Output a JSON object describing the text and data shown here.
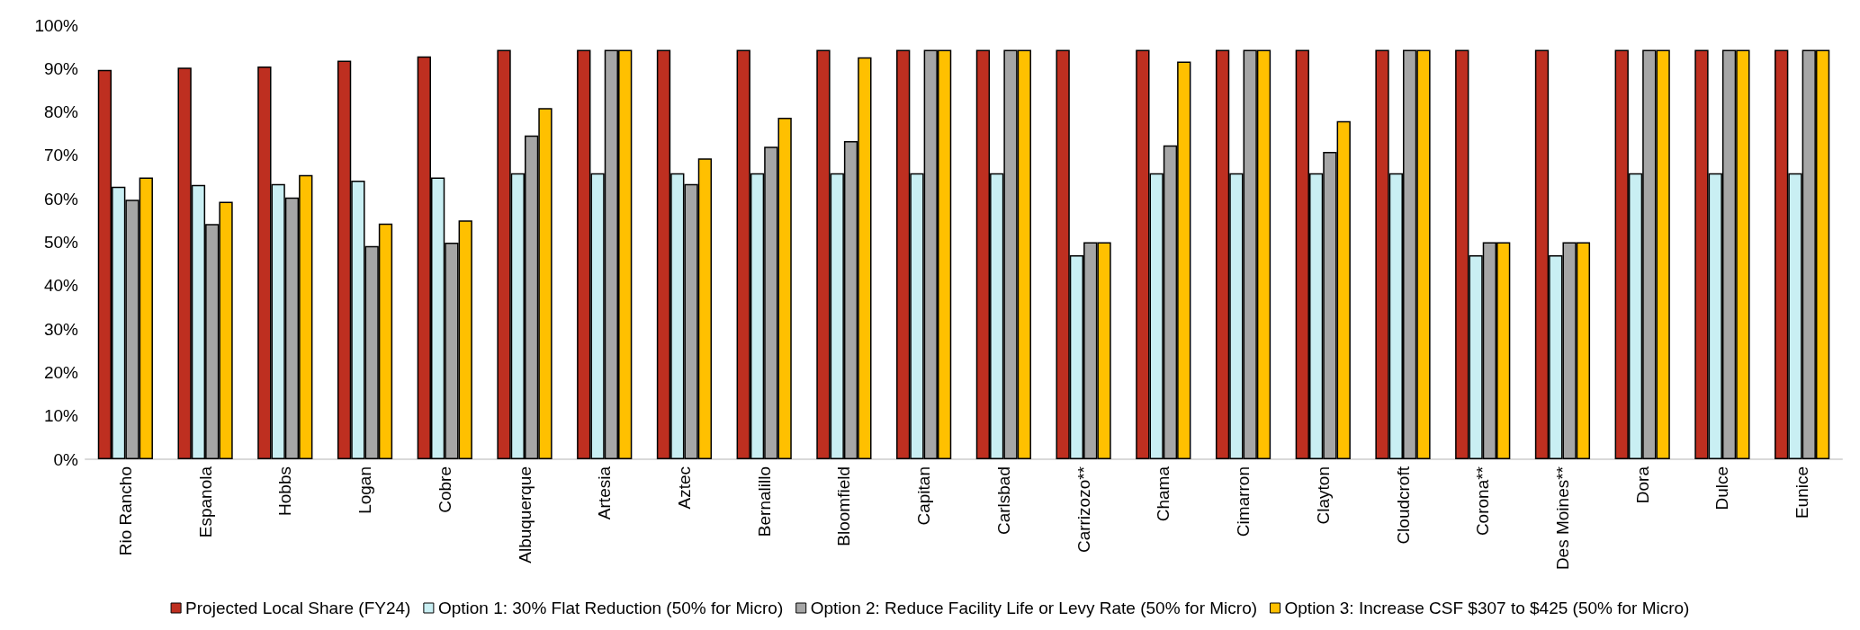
{
  "chart_data": {
    "type": "bar",
    "categories": [
      "Rio Rancho",
      "Espanola",
      "Hobbs",
      "Logan",
      "Cobre",
      "Albuquerque",
      "Artesia",
      "Aztec",
      "Bernalillo",
      "Bloomfield",
      "Capitan",
      "Carlsbad",
      "Carrizozo**",
      "Chama",
      "Cimarron",
      "Clayton",
      "Cloudcroft",
      "Corona**",
      "Des Moines**",
      "Dora",
      "Dulce",
      "Eunice"
    ],
    "series": [
      {
        "name": "Projected Local Share (FY24)",
        "color": "#be2f20",
        "values": [
          89.7,
          90.2,
          90.5,
          91.8,
          92.8,
          94.3,
          94.3,
          94.3,
          94.3,
          94.3,
          94.3,
          94.3,
          94.3,
          94.3,
          94.3,
          94.3,
          94.3,
          94.3,
          94.3,
          94.3,
          94.3,
          94.3
        ]
      },
      {
        "name": "Option 1: 30% Flat Reduction (50% for Micro)",
        "color": "#c9eff3",
        "values": [
          62.8,
          63.2,
          63.4,
          64.2,
          64.9,
          65.9,
          65.9,
          65.9,
          65.9,
          65.9,
          65.9,
          65.9,
          47,
          65.9,
          65.9,
          65.9,
          65.9,
          47,
          47,
          65.9,
          65.9,
          65.9
        ]
      },
      {
        "name": "Option 2: Reduce Facility Life or Levy Rate (50% for Micro)",
        "color": "#a6a6a6",
        "values": [
          59.8,
          54.2,
          60.3,
          49.1,
          49.9,
          74.6,
          94.3,
          63.4,
          72,
          73.3,
          94.3,
          94.3,
          50,
          72.3,
          94.3,
          70.8,
          94.3,
          50,
          50,
          94.3,
          94.3,
          94.3
        ]
      },
      {
        "name": "Option 3: Increase CSF $307 to $425 (50% for Micro)",
        "color": "#ffc000",
        "values": [
          64.9,
          59.3,
          65.5,
          54.3,
          55,
          80.9,
          94.3,
          69.3,
          78.7,
          92.6,
          94.3,
          94.3,
          50,
          91.6,
          94.3,
          77.9,
          94.3,
          50,
          50,
          94.3,
          94.3,
          94.3
        ]
      }
    ],
    "ylim": [
      0,
      100
    ],
    "yticks": [
      {
        "value": 0,
        "label": "0%"
      },
      {
        "value": 10,
        "label": "10%"
      },
      {
        "value": 20,
        "label": "20%"
      },
      {
        "value": 30,
        "label": "30%"
      },
      {
        "value": 40,
        "label": "40%"
      },
      {
        "value": 50,
        "label": "50%"
      },
      {
        "value": 60,
        "label": "60%"
      },
      {
        "value": 70,
        "label": "70%"
      },
      {
        "value": 80,
        "label": "80%"
      },
      {
        "value": 90,
        "label": "90%"
      },
      {
        "value": 100,
        "label": "100%"
      }
    ],
    "grid": false,
    "legend": "bottom"
  }
}
